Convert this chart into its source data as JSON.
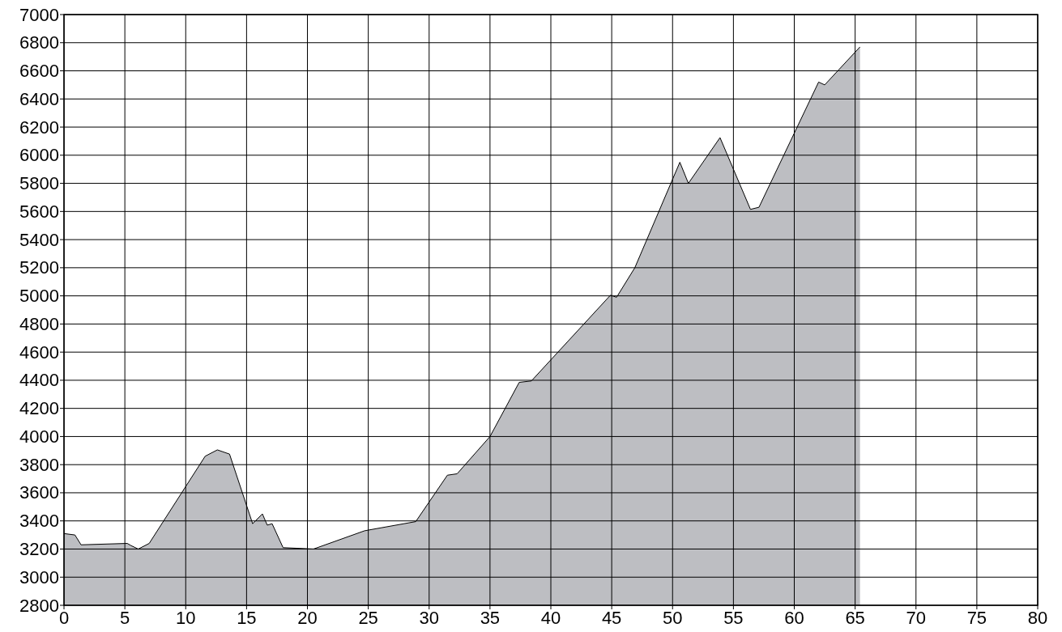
{
  "chart_data": {
    "type": "area",
    "color": "#bdbec2",
    "grid": true,
    "x": [
      0,
      0.9,
      1.4,
      5.2,
      5.5,
      6.1,
      7.0,
      11.6,
      12.6,
      13.6,
      15.5,
      16.3,
      16.7,
      17.1,
      18.0,
      20.5,
      24.7,
      28.9,
      31.5,
      32.3,
      35.0,
      37.4,
      38.4,
      44.9,
      45.4,
      46.9,
      50.6,
      51.3,
      53.9,
      56.4,
      57.1,
      62.0,
      62.5,
      65.4
    ],
    "values": [
      3310,
      3300,
      3230,
      3240,
      3225,
      3200,
      3240,
      3860,
      3905,
      3875,
      3380,
      3450,
      3370,
      3380,
      3210,
      3200,
      3330,
      3395,
      3725,
      3735,
      4000,
      4385,
      4395,
      5005,
      4990,
      5200,
      5950,
      5800,
      6125,
      5615,
      5630,
      6520,
      6500,
      6770
    ],
    "xlim": [
      0,
      80
    ],
    "xticks": [
      0,
      5,
      10,
      15,
      20,
      25,
      30,
      35,
      40,
      45,
      50,
      55,
      60,
      65,
      70,
      75,
      80
    ],
    "ylim": [
      2800,
      7000
    ],
    "yticks": [
      2800,
      3000,
      3200,
      3400,
      3600,
      3800,
      4000,
      4200,
      4400,
      4600,
      4800,
      5000,
      5200,
      5400,
      5600,
      5800,
      6000,
      6200,
      6400,
      6600,
      6800,
      7000
    ]
  }
}
